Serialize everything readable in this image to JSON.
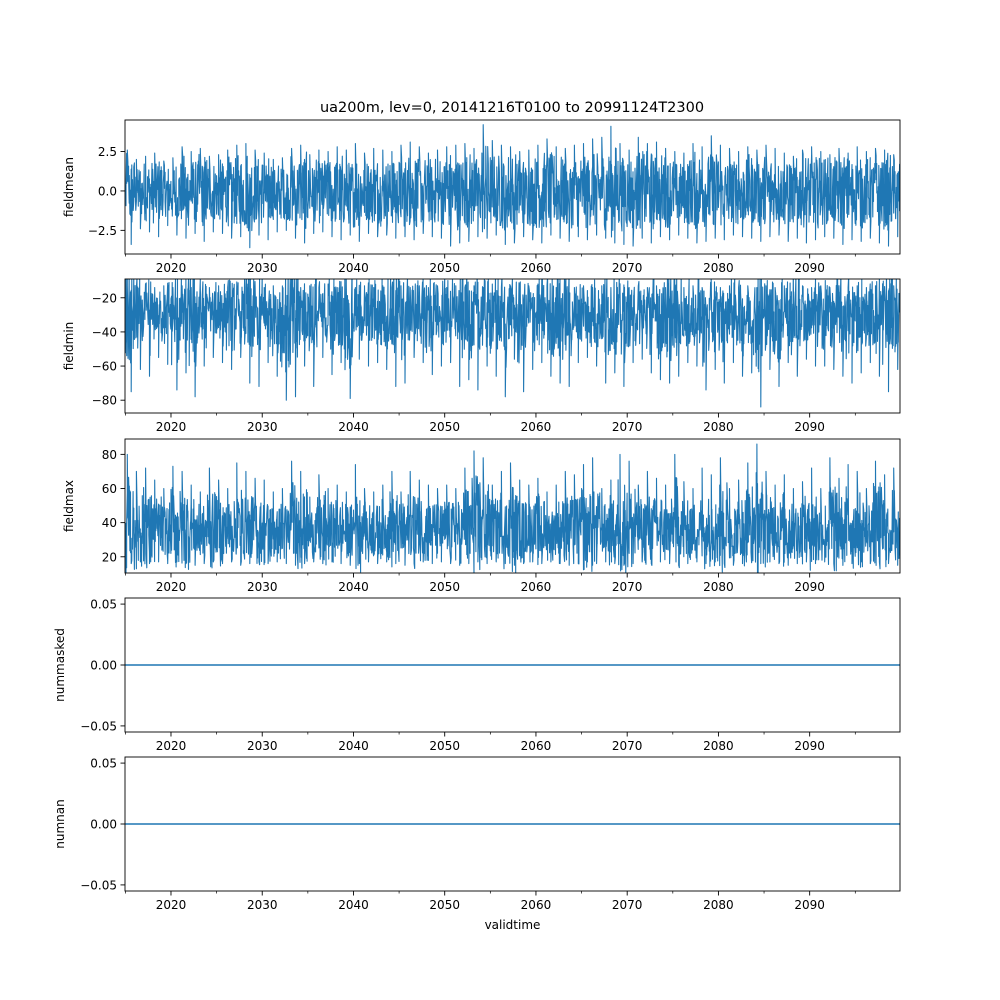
{
  "figure": {
    "title": "ua200m, lev=0, 20141216T0100 to 20991124T2300",
    "line_color": "#1f77b4"
  },
  "chart_data": [
    {
      "type": "line",
      "ylabel": "fieldmean",
      "xlabel": "",
      "xlim": [
        2014.96,
        2099.9
      ],
      "ylim": [
        -4.0,
        4.5
      ],
      "x_ticks": [
        2020,
        2030,
        2040,
        2050,
        2060,
        2070,
        2080,
        2090
      ],
      "x_tick_labels": [
        "2020",
        "2030",
        "2040",
        "2050",
        "2060",
        "2070",
        "2080",
        "2090"
      ],
      "y_ticks": [
        -2.5,
        0.0,
        2.5
      ],
      "y_tick_labels": [
        "−2.5",
        "0.0",
        "2.5"
      ],
      "series": [
        {
          "color": "#1f77b4",
          "x": [
            2015,
            2016,
            2017,
            2018,
            2019,
            2020,
            2021,
            2022,
            2023,
            2024,
            2025,
            2026,
            2027,
            2028,
            2029,
            2030,
            2031,
            2032,
            2033,
            2034,
            2035,
            2036,
            2037,
            2038,
            2039,
            2040,
            2041,
            2042,
            2043,
            2044,
            2045,
            2046,
            2047,
            2048,
            2049,
            2050,
            2051,
            2052,
            2053,
            2054,
            2055,
            2056,
            2057,
            2058,
            2059,
            2060,
            2061,
            2062,
            2063,
            2064,
            2065,
            2066,
            2067,
            2068,
            2069,
            2070,
            2071,
            2072,
            2073,
            2074,
            2075,
            2076,
            2077,
            2078,
            2079,
            2080,
            2081,
            2082,
            2083,
            2084,
            2085,
            2086,
            2087,
            2088,
            2089,
            2090,
            2091,
            2092,
            2093,
            2094,
            2095,
            2096,
            2097,
            2098,
            2099
          ],
          "y_max": [
            2.6,
            2.0,
            2.2,
            2.4,
            1.9,
            2.1,
            2.8,
            2.5,
            2.7,
            2.2,
            2.3,
            2.6,
            2.9,
            3.0,
            2.6,
            2.4,
            2.0,
            2.1,
            2.7,
            2.9,
            2.3,
            2.6,
            2.5,
            2.8,
            2.6,
            3.0,
            2.4,
            2.7,
            2.6,
            2.5,
            2.9,
            3.1,
            2.8,
            2.4,
            2.6,
            2.8,
            2.9,
            3.0,
            2.7,
            4.2,
            3.2,
            2.9,
            2.8,
            2.5,
            2.6,
            2.9,
            3.3,
            2.8,
            2.7,
            2.9,
            3.0,
            3.3,
            3.4,
            4.1,
            3.0,
            2.6,
            3.4,
            3.0,
            3.1,
            2.7,
            2.5,
            2.4,
            3.0,
            2.8,
            3.5,
            2.9,
            2.7,
            2.5,
            2.8,
            2.6,
            2.9,
            2.7,
            2.4,
            2.2,
            2.6,
            2.8,
            2.5,
            2.3,
            2.7,
            2.4,
            2.8,
            2.5,
            2.7,
            2.6,
            2.3
          ],
          "y_min": [
            -3.4,
            -2.4,
            -2.6,
            -2.9,
            -2.2,
            -2.8,
            -3.0,
            -2.7,
            -3.2,
            -2.6,
            -2.7,
            -3.0,
            -2.9,
            -3.6,
            -2.8,
            -3.1,
            -2.6,
            -2.5,
            -3.0,
            -3.3,
            -2.7,
            -2.6,
            -2.9,
            -3.1,
            -2.8,
            -3.2,
            -2.7,
            -2.9,
            -2.8,
            -3.0,
            -2.9,
            -3.1,
            -2.7,
            -2.9,
            -3.0,
            -3.5,
            -3.3,
            -3.2,
            -2.9,
            -3.0,
            -2.8,
            -3.4,
            -3.3,
            -2.9,
            -3.1,
            -3.3,
            -2.8,
            -3.0,
            -3.2,
            -2.9,
            -3.1,
            -2.8,
            -3.0,
            -3.3,
            -3.4,
            -3.5,
            -3.0,
            -3.3,
            -2.9,
            -3.1,
            -2.8,
            -3.0,
            -3.3,
            -3.2,
            -3.0,
            -3.1,
            -2.8,
            -2.9,
            -3.0,
            -3.2,
            -2.9,
            -2.8,
            -3.2,
            -3.0,
            -3.3,
            -3.1,
            -2.9,
            -3.0,
            -3.4,
            -3.1,
            -3.2,
            -3.0,
            -3.3,
            -3.5,
            -2.9
          ],
          "center": 0.0
        }
      ]
    },
    {
      "type": "line",
      "ylabel": "fieldmin",
      "xlabel": "",
      "xlim": [
        2014.96,
        2099.9
      ],
      "ylim": [
        -87.5,
        -9.0
      ],
      "x_ticks": [
        2020,
        2030,
        2040,
        2050,
        2060,
        2070,
        2080,
        2090
      ],
      "x_tick_labels": [
        "2020",
        "2030",
        "2040",
        "2050",
        "2060",
        "2070",
        "2080",
        "2090"
      ],
      "y_ticks": [
        -80,
        -60,
        -40,
        -20
      ],
      "y_tick_labels": [
        "−80",
        "−60",
        "−40",
        "−20"
      ],
      "series": [
        {
          "color": "#1f77b4",
          "x": [
            2015,
            2016,
            2017,
            2018,
            2019,
            2020,
            2021,
            2022,
            2023,
            2024,
            2025,
            2026,
            2027,
            2028,
            2029,
            2030,
            2031,
            2032,
            2033,
            2034,
            2035,
            2036,
            2037,
            2038,
            2039,
            2040,
            2041,
            2042,
            2043,
            2044,
            2045,
            2046,
            2047,
            2048,
            2049,
            2050,
            2051,
            2052,
            2053,
            2054,
            2055,
            2056,
            2057,
            2058,
            2059,
            2060,
            2061,
            2062,
            2063,
            2064,
            2065,
            2066,
            2067,
            2068,
            2069,
            2070,
            2071,
            2072,
            2073,
            2074,
            2075,
            2076,
            2077,
            2078,
            2079,
            2080,
            2081,
            2082,
            2083,
            2084,
            2085,
            2086,
            2087,
            2088,
            2089,
            2090,
            2091,
            2092,
            2093,
            2094,
            2095,
            2096,
            2097,
            2098,
            2099
          ],
          "y_max": [
            -13,
            -14,
            -13,
            -14,
            -13,
            -14,
            -13,
            -14,
            -13,
            -14,
            -13,
            -14,
            -13,
            -14,
            -13,
            -14,
            -13,
            -14,
            -13,
            -14,
            -13,
            -14,
            -12,
            -14,
            -13,
            -14,
            -13,
            -14,
            -13,
            -14,
            -13,
            -14,
            -13,
            -14,
            -13,
            -14,
            -13,
            -14,
            -13,
            -14,
            -12,
            -14,
            -13,
            -14,
            -13,
            -12,
            -13,
            -14,
            -13,
            -14,
            -13,
            -14,
            -13,
            -14,
            -13,
            -14,
            -13,
            -14,
            -13,
            -14,
            -12,
            -14,
            -13,
            -14,
            -13,
            -14,
            -13,
            -14,
            -13,
            -14,
            -13,
            -14,
            -13,
            -14,
            -13,
            -14,
            -13,
            -14,
            -13,
            -14,
            -13,
            -14,
            -13,
            -14,
            -13
          ],
          "y_min": [
            -75,
            -62,
            -66,
            -55,
            -59,
            -74,
            -64,
            -78,
            -60,
            -55,
            -58,
            -62,
            -55,
            -70,
            -72,
            -58,
            -66,
            -80,
            -78,
            -60,
            -72,
            -55,
            -65,
            -58,
            -79,
            -56,
            -60,
            -58,
            -62,
            -72,
            -70,
            -55,
            -58,
            -65,
            -60,
            -58,
            -72,
            -68,
            -74,
            -60,
            -66,
            -78,
            -56,
            -75,
            -62,
            -58,
            -66,
            -70,
            -72,
            -58,
            -55,
            -60,
            -70,
            -64,
            -72,
            -58,
            -56,
            -64,
            -68,
            -70,
            -66,
            -58,
            -60,
            -74,
            -62,
            -70,
            -58,
            -66,
            -64,
            -84,
            -62,
            -72,
            -58,
            -66,
            -56,
            -60,
            -60,
            -62,
            -66,
            -70,
            -64,
            -58,
            -66,
            -75,
            -62
          ],
          "center": -26.0
        }
      ]
    },
    {
      "type": "line",
      "ylabel": "fieldmax",
      "xlabel": "",
      "xlim": [
        2014.96,
        2099.9
      ],
      "ylim": [
        10.5,
        89.0
      ],
      "x_ticks": [
        2020,
        2030,
        2040,
        2050,
        2060,
        2070,
        2080,
        2090
      ],
      "x_tick_labels": [
        "2020",
        "2030",
        "2040",
        "2050",
        "2060",
        "2070",
        "2080",
        "2090"
      ],
      "y_ticks": [
        20,
        40,
        60,
        80
      ],
      "y_tick_labels": [
        "20",
        "40",
        "60",
        "80"
      ],
      "series": [
        {
          "color": "#1f77b4",
          "x": [
            2015,
            2016,
            2017,
            2018,
            2019,
            2020,
            2021,
            2022,
            2023,
            2024,
            2025,
            2026,
            2027,
            2028,
            2029,
            2030,
            2031,
            2032,
            2033,
            2034,
            2035,
            2036,
            2037,
            2038,
            2039,
            2040,
            2041,
            2042,
            2043,
            2044,
            2045,
            2046,
            2047,
            2048,
            2049,
            2050,
            2051,
            2052,
            2053,
            2054,
            2055,
            2056,
            2057,
            2058,
            2059,
            2060,
            2061,
            2062,
            2063,
            2064,
            2065,
            2066,
            2067,
            2068,
            2069,
            2070,
            2071,
            2072,
            2073,
            2074,
            2075,
            2076,
            2077,
            2078,
            2079,
            2080,
            2081,
            2082,
            2083,
            2084,
            2085,
            2086,
            2087,
            2088,
            2089,
            2090,
            2091,
            2092,
            2093,
            2094,
            2095,
            2096,
            2097,
            2098,
            2099
          ],
          "y_max": [
            80,
            70,
            72,
            65,
            60,
            73,
            70,
            62,
            58,
            72,
            65,
            60,
            75,
            70,
            66,
            65,
            58,
            60,
            76,
            70,
            55,
            68,
            60,
            62,
            58,
            74,
            60,
            58,
            62,
            70,
            58,
            70,
            65,
            62,
            60,
            62,
            60,
            72,
            82,
            78,
            62,
            70,
            75,
            65,
            62,
            66,
            58,
            62,
            70,
            68,
            74,
            78,
            60,
            65,
            80,
            76,
            62,
            70,
            66,
            62,
            80,
            64,
            60,
            72,
            68,
            78,
            60,
            65,
            75,
            86,
            70,
            62,
            68,
            60,
            64,
            72,
            60,
            78,
            66,
            74,
            70,
            60,
            76,
            68,
            72
          ],
          "y_min": [
            16,
            17,
            16,
            17,
            16,
            17,
            16,
            15,
            16,
            17,
            16,
            17,
            15,
            16,
            17,
            16,
            17,
            16,
            15,
            16,
            17,
            16,
            17,
            16,
            15,
            16,
            17,
            16,
            17,
            16,
            15,
            16,
            17,
            16,
            17,
            16,
            15,
            16,
            17,
            16,
            17,
            16,
            15,
            16,
            17,
            16,
            17,
            16,
            15,
            16,
            17,
            16,
            17,
            16,
            15,
            16,
            17,
            16,
            17,
            16,
            15,
            16,
            17,
            16,
            17,
            16,
            15,
            16,
            17,
            16,
            17,
            16,
            15,
            16,
            17,
            16,
            17,
            16,
            15,
            16,
            17,
            16,
            17,
            16,
            15
          ],
          "center": 34.0
        }
      ]
    },
    {
      "type": "line",
      "ylabel": "nummasked",
      "xlabel": "",
      "xlim": [
        2014.96,
        2099.9
      ],
      "ylim": [
        -0.055,
        0.055
      ],
      "x_ticks": [
        2020,
        2030,
        2040,
        2050,
        2060,
        2070,
        2080,
        2090
      ],
      "x_tick_labels": [
        "2020",
        "2030",
        "2040",
        "2050",
        "2060",
        "2070",
        "2080",
        "2090"
      ],
      "y_ticks": [
        -0.05,
        0.0,
        0.05
      ],
      "y_tick_labels": [
        "−0.05",
        "0.00",
        "0.05"
      ],
      "series": [
        {
          "color": "#1f77b4",
          "x": [
            2014.96,
            2099.9
          ],
          "y": [
            0,
            0
          ]
        }
      ]
    },
    {
      "type": "line",
      "ylabel": "numnan",
      "xlabel": "validtime",
      "xlim": [
        2014.96,
        2099.9
      ],
      "ylim": [
        -0.055,
        0.055
      ],
      "x_ticks": [
        2020,
        2030,
        2040,
        2050,
        2060,
        2070,
        2080,
        2090
      ],
      "x_tick_labels": [
        "2020",
        "2030",
        "2040",
        "2050",
        "2060",
        "2070",
        "2080",
        "2090"
      ],
      "y_ticks": [
        -0.05,
        0.0,
        0.05
      ],
      "y_tick_labels": [
        "−0.05",
        "0.00",
        "0.05"
      ],
      "series": [
        {
          "color": "#1f77b4",
          "x": [
            2014.96,
            2099.9
          ],
          "y": [
            0,
            0
          ]
        }
      ]
    }
  ]
}
